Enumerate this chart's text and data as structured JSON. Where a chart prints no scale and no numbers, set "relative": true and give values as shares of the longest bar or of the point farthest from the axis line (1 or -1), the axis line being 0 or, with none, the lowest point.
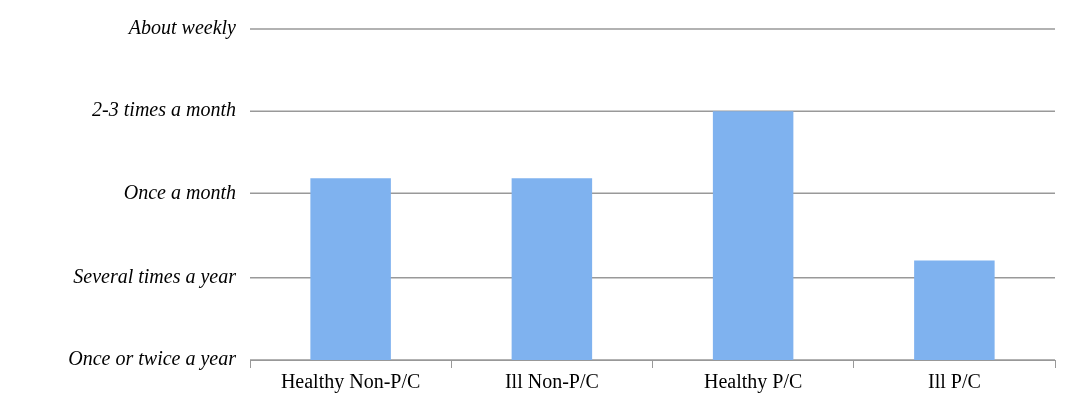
{
  "chart_data": {
    "type": "bar",
    "categories": [
      "Healthy Non-P/C",
      "Ill Non-P/C",
      "Healthy P/C",
      "Ill P/C"
    ],
    "values": [
      0.73,
      0.73,
      1,
      0.4
    ],
    "color": "#7fb2ef",
    "relative": true,
    "ref_lines": [
      {
        "axis": "y",
        "value": 0,
        "label": "Once or twice a year",
        "color": "#999999"
      },
      {
        "axis": "y",
        "value": 0.33,
        "label": "Several times a year",
        "color": "#999999"
      },
      {
        "axis": "y",
        "value": 0.67,
        "label": "Once a month",
        "color": "#999999"
      },
      {
        "axis": "y",
        "value": 1,
        "label": "2-3 times a month",
        "color": "#999999"
      },
      {
        "axis": "y",
        "value": 1.33,
        "label": "About weekly",
        "color": "#999999"
      }
    ],
    "legend": false
  }
}
